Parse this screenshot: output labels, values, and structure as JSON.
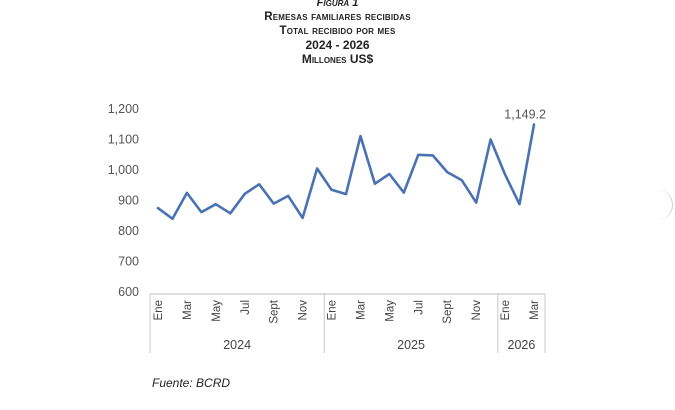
{
  "header": {
    "figure_label": "Figura 1",
    "title_line1": "Remesas familiares recibidas",
    "title_line2": "Total recibido por mes",
    "title_line3": "2024 - 2026",
    "title_line4": "Millones US$"
  },
  "footer": {
    "source": "Fuente: BCRD"
  },
  "chart_data": {
    "type": "line",
    "title": "",
    "xlabel": "",
    "ylabel": "",
    "ylim": [
      600,
      1200
    ],
    "yticks": [
      600,
      700,
      800,
      900,
      1000,
      1100,
      1200
    ],
    "ytick_labels": [
      "600",
      "700",
      "800",
      "900",
      "1,000",
      "1,100",
      "1,200"
    ],
    "x": [
      "2024-01",
      "2024-02",
      "2024-03",
      "2024-04",
      "2024-05",
      "2024-06",
      "2024-07",
      "2024-08",
      "2024-09",
      "2024-10",
      "2024-11",
      "2024-12",
      "2025-01",
      "2025-02",
      "2025-03",
      "2025-04",
      "2025-05",
      "2025-06",
      "2025-07",
      "2025-08",
      "2025-09",
      "2025-10",
      "2025-11",
      "2025-12",
      "2026-01",
      "2026-02",
      "2026-03"
    ],
    "x_tick_labels": [
      "Ene",
      "",
      "Mar",
      "",
      "May",
      "",
      "Jul",
      "",
      "Sept",
      "",
      "Nov",
      "",
      "Ene",
      "",
      "Mar",
      "",
      "May",
      "",
      "Jul",
      "",
      "Sept",
      "",
      "Nov",
      "",
      "Ene",
      "",
      "Mar"
    ],
    "year_groups": [
      {
        "label": "2024",
        "start": 0,
        "end": 11
      },
      {
        "label": "2025",
        "start": 12,
        "end": 23
      },
      {
        "label": "2026",
        "start": 24,
        "end": 26
      }
    ],
    "series": [
      {
        "values": [
          875,
          840,
          925,
          862,
          888,
          858,
          922,
          953,
          890,
          915,
          843,
          1005,
          935,
          921,
          1111,
          955,
          987,
          926,
          1050,
          1048,
          993,
          967,
          893,
          1100,
          985,
          888,
          1149.2
        ],
        "color": "#4a72b2"
      }
    ],
    "annotations": [
      {
        "index": 26,
        "text": "1,149.2"
      }
    ],
    "grid": false
  }
}
